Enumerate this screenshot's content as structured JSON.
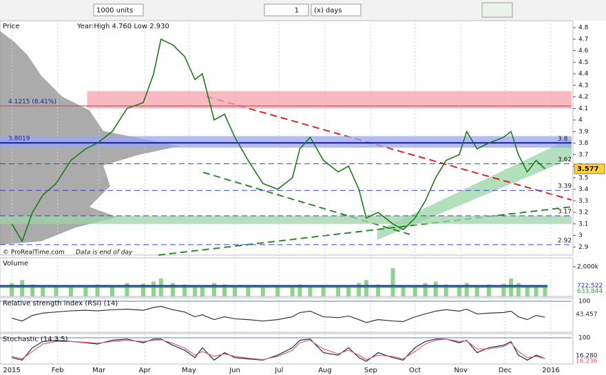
{
  "toolbar": {
    "units": "1000 units",
    "count": "1",
    "period": "(x) days"
  },
  "chart_data": [
    {
      "type": "line",
      "title": "Price",
      "subtitle": "Year:High 4.760 Low 2.930",
      "annotations": [
        "© ProRealTime.com",
        "Data is end of day"
      ],
      "x": [
        0,
        7,
        14,
        21,
        30,
        40,
        50,
        58,
        68,
        78,
        89,
        96,
        101,
        109,
        117,
        124,
        129,
        137,
        144,
        151,
        160,
        170,
        180,
        190,
        195,
        202,
        211,
        221,
        228,
        235,
        240,
        248,
        258,
        265,
        273,
        280,
        287,
        294,
        303,
        308,
        315,
        323,
        333,
        338,
        343,
        349,
        355,
        361
      ],
      "values": [
        3.1,
        2.95,
        3.2,
        3.35,
        3.45,
        3.65,
        3.75,
        3.8,
        3.9,
        4.1,
        4.15,
        4.4,
        4.7,
        4.65,
        4.55,
        4.35,
        4.4,
        4.0,
        4.05,
        3.85,
        3.65,
        3.45,
        3.4,
        3.5,
        3.75,
        3.85,
        3.65,
        3.55,
        3.6,
        3.4,
        3.15,
        3.2,
        3.1,
        3.05,
        3.15,
        3.3,
        3.5,
        3.65,
        3.7,
        3.9,
        3.75,
        3.8,
        3.85,
        3.9,
        3.7,
        3.55,
        3.65,
        3.577
      ],
      "color": "#1a7a1a",
      "xlim": [
        -8,
        379
      ],
      "xticks": [
        {
          "value": 0,
          "label": "2015"
        },
        {
          "value": 31,
          "label": "Feb"
        },
        {
          "value": 59,
          "label": "Mar"
        },
        {
          "value": 90,
          "label": "Apr"
        },
        {
          "value": 120,
          "label": "May"
        },
        {
          "value": 151,
          "label": "Jun"
        },
        {
          "value": 181,
          "label": "Jul"
        },
        {
          "value": 212,
          "label": "Aug"
        },
        {
          "value": 243,
          "label": "Sep"
        },
        {
          "value": 273,
          "label": "Oct"
        },
        {
          "value": 304,
          "label": "Nov"
        },
        {
          "value": 334,
          "label": "Dec"
        },
        {
          "value": 365,
          "label": "2016"
        }
      ],
      "ylim": [
        2.83,
        4.86
      ],
      "yticks": [
        4.8,
        4.7,
        4.6,
        4.5,
        4.4,
        4.3,
        4.2,
        4.1,
        4,
        3.9,
        3.8,
        3.7,
        3.6,
        3.5,
        3.4,
        3.3,
        3.2,
        3.1,
        3,
        2.9
      ],
      "level_lines": [
        3.8,
        3.62,
        3.39,
        3.17,
        2.92
      ],
      "left_labels": [
        {
          "value": 4.1215,
          "label": "4.1215 (8.41%)"
        },
        {
          "value": 3.8019,
          "label": "3.8019"
        }
      ],
      "bands": [
        {
          "from": 4.1,
          "to": 4.25,
          "start": 51,
          "color": "#f5a3ab"
        },
        {
          "from": 3.76,
          "to": 3.86,
          "start": -8,
          "color": "#9aa6f0"
        },
        {
          "from": 3.1,
          "to": 3.17,
          "start": -8,
          "color": "#9fd4a8"
        }
      ]
    },
    {
      "type": "bar",
      "title": "Volume",
      "color": "#8fd18f",
      "values": [
        900000,
        1100000,
        800000,
        700000,
        600000,
        650000,
        700000,
        800000,
        750000,
        900000,
        850000,
        1000000,
        1200000,
        900000,
        800000,
        700000,
        750000,
        900000,
        800000,
        700000,
        650000,
        600000,
        700000,
        650000,
        800000,
        700000,
        600000,
        650000,
        700000,
        900000,
        1100000,
        800000,
        1900000,
        700000,
        750000,
        900000,
        1000000,
        800000,
        700000,
        900000,
        750000,
        800000,
        850000,
        1200000,
        900000,
        700000,
        650000,
        600000
      ],
      "ylim": [
        0,
        2600000
      ],
      "yticks": [
        {
          "value": 2000000,
          "label": "2,000k"
        }
      ],
      "avg_lines": [
        {
          "value": 722522,
          "label": "722,522",
          "color": "#2233aa"
        },
        {
          "value": 633844,
          "label": "633,844",
          "color": "#3a9a3a"
        }
      ]
    },
    {
      "type": "line",
      "title": "Relative strength index (RSI) (14)",
      "color": "#333333",
      "values": [
        40,
        30,
        50,
        58,
        62,
        66,
        68,
        66,
        70,
        72,
        68,
        78,
        82,
        70,
        62,
        45,
        52,
        35,
        45,
        38,
        35,
        30,
        35,
        45,
        60,
        65,
        45,
        42,
        48,
        35,
        25,
        35,
        30,
        28,
        45,
        55,
        65,
        70,
        65,
        72,
        55,
        58,
        60,
        65,
        45,
        35,
        50,
        43.457
      ],
      "ylim": [
        0,
        100
      ],
      "yticks": [
        100
      ]
    },
    {
      "type": "line",
      "title": "Stochastic (14 3 5)",
      "series": [
        {
          "color": "#222244",
          "values": [
            20,
            10,
            60,
            85,
            90,
            85,
            80,
            75,
            90,
            95,
            80,
            95,
            95,
            70,
            50,
            20,
            60,
            10,
            40,
            20,
            15,
            10,
            30,
            60,
            90,
            95,
            40,
            30,
            60,
            20,
            5,
            40,
            20,
            10,
            60,
            85,
            95,
            95,
            80,
            90,
            40,
            60,
            70,
            85,
            30,
            10,
            30,
            16.28
          ],
          "value_labels": [
            null,
            null,
            null,
            null,
            null,
            null,
            null,
            null,
            null,
            null,
            null,
            null,
            null,
            null,
            null,
            null,
            null,
            null,
            null,
            null,
            null,
            null,
            null,
            null,
            null,
            null,
            null,
            null,
            null,
            null,
            null,
            null,
            null,
            null,
            null,
            null,
            null,
            null,
            null,
            null,
            null,
            null,
            null,
            null,
            null,
            null,
            null,
            "16.280"
          ]
        },
        {
          "color": "#e06070",
          "values": [
            25,
            15,
            45,
            75,
            85,
            85,
            82,
            78,
            85,
            90,
            85,
            90,
            92,
            78,
            58,
            30,
            45,
            25,
            35,
            25,
            18,
            12,
            25,
            50,
            80,
            90,
            55,
            35,
            50,
            30,
            12,
            30,
            25,
            15,
            45,
            75,
            90,
            95,
            85,
            88,
            55,
            55,
            65,
            80,
            45,
            20,
            25,
            16.236
          ]
        }
      ],
      "ylim": [
        0,
        100
      ],
      "yticks": [
        100
      ]
    }
  ]
}
